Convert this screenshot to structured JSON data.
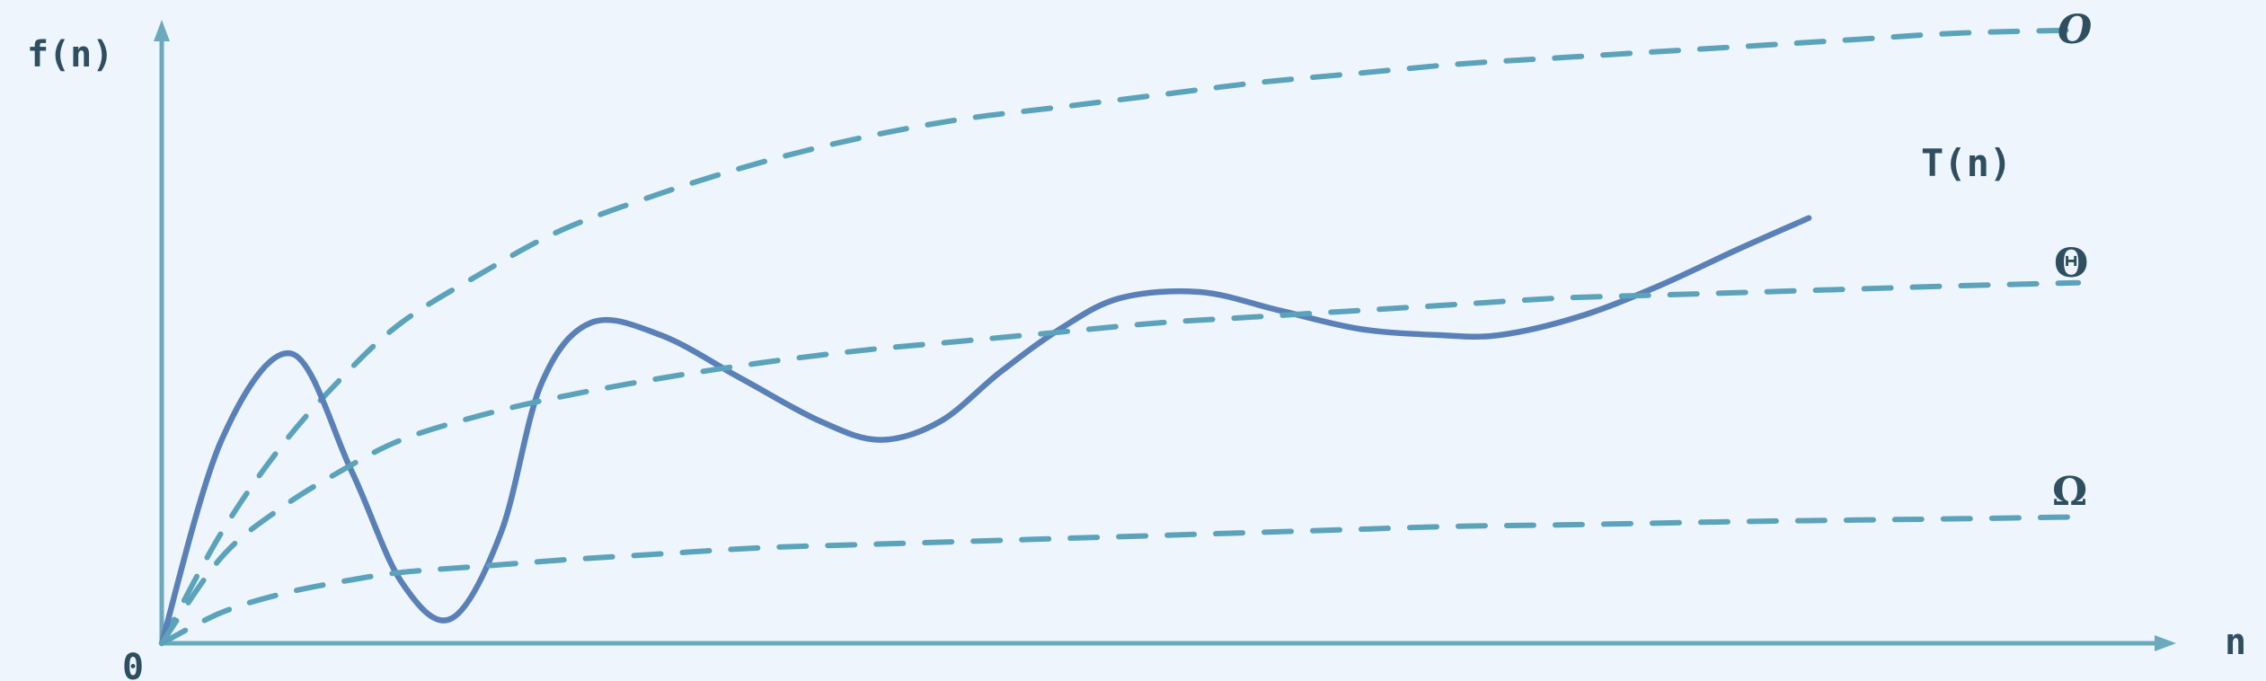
{
  "chart_data": {
    "type": "line",
    "title": "",
    "xlabel": "n",
    "ylabel": "f(n)",
    "origin_label": "0",
    "xlim": [
      0,
      100
    ],
    "ylim": [
      0,
      100
    ],
    "grid": false,
    "series": [
      {
        "name": "O",
        "style": "dashed",
        "color": "#5ba2bb",
        "points": [
          [
            0,
            0
          ],
          [
            3,
            18
          ],
          [
            6,
            32
          ],
          [
            9,
            43
          ],
          [
            12,
            52
          ],
          [
            16,
            60
          ],
          [
            20,
            67
          ],
          [
            25,
            73
          ],
          [
            30,
            78
          ],
          [
            35,
            82
          ],
          [
            40,
            85
          ],
          [
            45,
            87
          ],
          [
            50,
            89
          ],
          [
            55,
            91
          ],
          [
            60,
            92.5
          ],
          [
            65,
            94
          ],
          [
            70,
            95
          ],
          [
            75,
            96
          ],
          [
            80,
            97
          ],
          [
            85,
            98
          ],
          [
            90,
            99
          ],
          [
            96,
            99.5
          ]
        ]
      },
      {
        "name": "T(n)",
        "style": "solid",
        "color": "#5a80b8",
        "points": [
          [
            0,
            0
          ],
          [
            3,
            33
          ],
          [
            6.5,
            47
          ],
          [
            9.5,
            28
          ],
          [
            12,
            10
          ],
          [
            14.5,
            4
          ],
          [
            17,
            18
          ],
          [
            19,
            42
          ],
          [
            21.5,
            52
          ],
          [
            25,
            50
          ],
          [
            29,
            43
          ],
          [
            33,
            36
          ],
          [
            36,
            33
          ],
          [
            39,
            36
          ],
          [
            42,
            44
          ],
          [
            45,
            51
          ],
          [
            48,
            56
          ],
          [
            52,
            57
          ],
          [
            56,
            54
          ],
          [
            60,
            51
          ],
          [
            64,
            50
          ],
          [
            67,
            50
          ],
          [
            71,
            53
          ],
          [
            75,
            58
          ],
          [
            79,
            64
          ],
          [
            82.5,
            69
          ]
        ]
      },
      {
        "name": "Θ",
        "style": "dashed",
        "color": "#5ba2bb",
        "points": [
          [
            0,
            0
          ],
          [
            3,
            14
          ],
          [
            6,
            22
          ],
          [
            9,
            28
          ],
          [
            12,
            33
          ],
          [
            16,
            37
          ],
          [
            20,
            40
          ],
          [
            25,
            43
          ],
          [
            30,
            45.5
          ],
          [
            35,
            47.5
          ],
          [
            40,
            49
          ],
          [
            45,
            50.5
          ],
          [
            50,
            52
          ],
          [
            55,
            53
          ],
          [
            60,
            54
          ],
          [
            65,
            55
          ],
          [
            70,
            56
          ],
          [
            75,
            56.5
          ],
          [
            80,
            57
          ],
          [
            85,
            57.5
          ],
          [
            90,
            58
          ],
          [
            96,
            58.5
          ]
        ]
      },
      {
        "name": "Ω",
        "style": "dashed",
        "color": "#5ba2bb",
        "points": [
          [
            0,
            0
          ],
          [
            3,
            5
          ],
          [
            6,
            8
          ],
          [
            9,
            10
          ],
          [
            12,
            11.5
          ],
          [
            16,
            12.5
          ],
          [
            20,
            13.5
          ],
          [
            25,
            14.5
          ],
          [
            30,
            15.5
          ],
          [
            35,
            16
          ],
          [
            40,
            16.5
          ],
          [
            45,
            17
          ],
          [
            50,
            17.5
          ],
          [
            55,
            18
          ],
          [
            60,
            18.5
          ],
          [
            65,
            19
          ],
          [
            70,
            19.2
          ],
          [
            75,
            19.5
          ],
          [
            80,
            19.8
          ],
          [
            85,
            20
          ],
          [
            90,
            20.2
          ],
          [
            96,
            20.5
          ]
        ]
      }
    ],
    "labels": {
      "O": "O",
      "Theta": "Θ",
      "Omega": "Ω",
      "T": "T(n)"
    }
  }
}
